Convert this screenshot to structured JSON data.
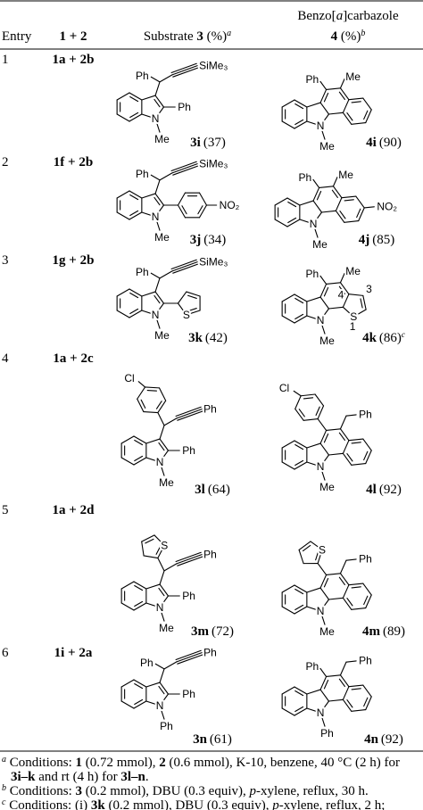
{
  "table": {
    "headers": [
      [
        [
          {
            "t": "Entry"
          }
        ]
      ],
      [
        [
          {
            "t": "1 + 2",
            "b": true
          }
        ]
      ],
      [
        [
          {
            "t": "Substrate "
          },
          {
            "t": "3",
            "b": true
          },
          {
            "t": " (%)"
          },
          {
            "t": "a",
            "i": true,
            "sup": true
          }
        ]
      ],
      [
        [
          {
            "t": "Benzo["
          },
          {
            "t": "a",
            "i": true
          },
          {
            "t": "]carbazole"
          }
        ],
        [
          {
            "t": "4",
            "b": true
          },
          {
            "t": " (%)"
          },
          {
            "t": "b",
            "i": true,
            "sup": true
          }
        ]
      ]
    ],
    "rows": [
      {
        "entry": "1",
        "reactants": "1a + 2b",
        "substrate": {
          "labels": {
            "ph3": "Ph",
            "alkyne": "SiMe₃",
            "c2": "Ph",
            "n": "N",
            "nsub": "Me"
          },
          "compound": "3i",
          "yield": "(37)"
        },
        "product": {
          "labels": {
            "a": "Ph",
            "b": "Me",
            "n": "N",
            "nsub": "Me"
          },
          "compound": "4i",
          "yield": "(90)"
        }
      },
      {
        "entry": "2",
        "reactants": "1f + 2b",
        "substrate": {
          "labels": {
            "ph3": "Ph",
            "alkyne": "SiMe₃",
            "c2_sub": "NO₂",
            "n": "N",
            "nsub": "Me"
          },
          "compound": "3j",
          "yield": "(34)"
        },
        "product": {
          "labels": {
            "a": "Ph",
            "b": "Me",
            "benzo_sub": "NO₂",
            "n": "N",
            "nsub": "Me"
          },
          "compound": "4j",
          "yield": "(85)"
        }
      },
      {
        "entry": "3",
        "reactants": "1g + 2b",
        "substrate": {
          "labels": {
            "ph3": "Ph",
            "alkyne": "SiMe₃",
            "c2_s": "S",
            "n": "N",
            "nsub": "Me"
          },
          "compound": "3k",
          "yield": "(42)"
        },
        "product": {
          "labels": {
            "a": "Ph",
            "b": "Me",
            "thio_s": "S",
            "pos4": "4",
            "pos3": "3",
            "pos1": "1",
            "n": "N",
            "nsub": "Me"
          },
          "compound": "4k",
          "yield": "(86)",
          "note": "c"
        }
      },
      {
        "entry": "4",
        "reactants": "1a + 2c",
        "substrate": {
          "labels": {
            "aryl_sub": "Cl",
            "alkyne": "Ph",
            "c2": "Ph",
            "n": "N",
            "nsub": "Me"
          },
          "compound": "3l",
          "yield": "(64)"
        },
        "product": {
          "labels": {
            "aryl_sub": "Cl",
            "ch2ph": "Ph",
            "n": "N",
            "nsub": "Me"
          },
          "compound": "4l",
          "yield": "(92)"
        }
      },
      {
        "entry": "5",
        "reactants": "1a + 2d",
        "substrate": {
          "labels": {
            "aryl_s": "S",
            "alkyne": "Ph",
            "c2": "Ph",
            "n": "N",
            "nsub": "Me"
          },
          "compound": "3m",
          "yield": "(72)"
        },
        "product": {
          "labels": {
            "aryl_s": "S",
            "ch2ph": "Ph",
            "n": "N",
            "nsub": "Me"
          },
          "compound": "4m",
          "yield": "(89)"
        }
      },
      {
        "entry": "6",
        "reactants": "1i + 2a",
        "substrate": {
          "labels": {
            "ph3": "Ph",
            "alkyne": "Ph",
            "c2": "Ph",
            "n": "N",
            "nsub": "Ph"
          },
          "compound": "3n",
          "yield": "(61)"
        },
        "product": {
          "labels": {
            "a": "Ph",
            "ch2ph": "Ph",
            "n": "N",
            "nsub": "Ph"
          },
          "compound": "4n",
          "yield": "(92)"
        }
      }
    ],
    "footnotes": [
      [
        [
          {
            "t": "a",
            "i": true,
            "sup": true
          },
          {
            "t": " Conditions: "
          },
          {
            "t": "1",
            "b": true
          },
          {
            "t": " (0.72 mmol), "
          },
          {
            "t": "2",
            "b": true
          },
          {
            "t": " (0.6 mmol), K-10, benzene, 40 °C (2 h) for"
          }
        ],
        [
          {
            "t": "3i–k",
            "b": true
          },
          {
            "t": " and rt (4 h) for "
          },
          {
            "t": "3l–n",
            "b": true
          },
          {
            "t": "."
          }
        ]
      ],
      [
        [
          {
            "t": "b",
            "i": true,
            "sup": true
          },
          {
            "t": " Conditions: "
          },
          {
            "t": "3",
            "b": true
          },
          {
            "t": " (0.2 mmol), DBU (0.3 equiv), "
          },
          {
            "t": "p",
            "i": true
          },
          {
            "t": "-xylene, reflux, 30 h."
          }
        ]
      ],
      [
        [
          {
            "t": "c",
            "i": true,
            "sup": true
          },
          {
            "t": " Conditions: (i) "
          },
          {
            "t": "3k",
            "b": true
          },
          {
            "t": " (0.2 mmol), DBU (0.3 equiv), "
          },
          {
            "t": "p",
            "i": true
          },
          {
            "t": "-xylene, reflux, 2 h;"
          }
        ]
      ]
    ]
  }
}
